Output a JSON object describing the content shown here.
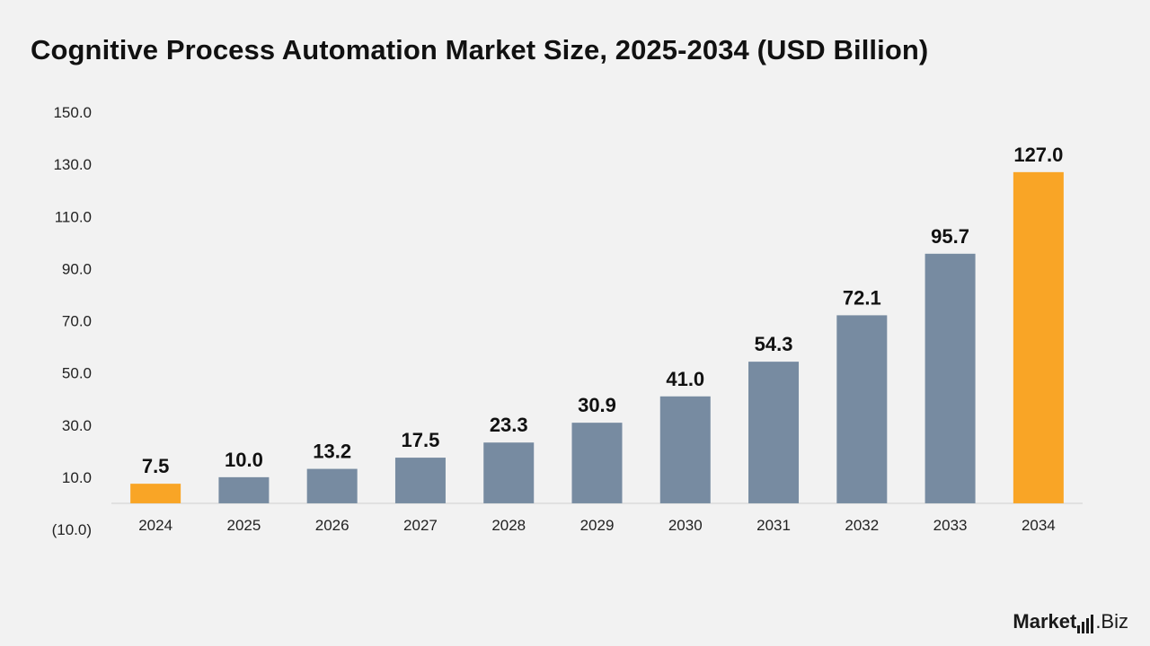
{
  "title": "Cognitive Process Automation Market Size, 2025-2034 (USD Billion)",
  "logo": {
    "part1": "Market",
    "part2": ".Biz",
    "icon": "bar-signal-icon"
  },
  "colors": {
    "background": "#f2f2f2",
    "bar_default": "#778ba1",
    "bar_highlight": "#f9a526",
    "axis_text": "#222222",
    "label_text": "#111111",
    "axis_line": "#d0d0d0"
  },
  "chart_data": {
    "type": "bar",
    "title": "Cognitive Process Automation Market Size, 2025-2034 (USD Billion)",
    "xlabel": "",
    "ylabel": "",
    "categories": [
      "2024",
      "2025",
      "2026",
      "2027",
      "2028",
      "2029",
      "2030",
      "2031",
      "2032",
      "2033",
      "2034"
    ],
    "values": [
      7.5,
      10.0,
      13.2,
      17.5,
      23.3,
      30.9,
      41.0,
      54.3,
      72.1,
      95.7,
      127.0
    ],
    "value_labels": [
      "7.5",
      "10.0",
      "13.2",
      "17.5",
      "23.3",
      "30.9",
      "41.0",
      "54.3",
      "72.1",
      "95.7",
      "127.0"
    ],
    "highlighted": [
      "2024",
      "2034"
    ],
    "ylim": [
      -10,
      150
    ],
    "yticks": [
      -10,
      10,
      30,
      50,
      70,
      90,
      110,
      130,
      150
    ],
    "ytick_labels": [
      "(10.0)",
      "10.0",
      "30.0",
      "50.0",
      "70.0",
      "90.0",
      "110.0",
      "130.0",
      "150.0"
    ],
    "grid": false,
    "legend": "none"
  }
}
